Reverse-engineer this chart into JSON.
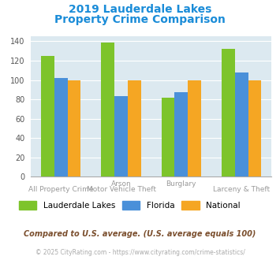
{
  "title_line1": "2019 Lauderdale Lakes",
  "title_line2": "Property Crime Comparison",
  "title_color": "#1a8cd8",
  "groups": [
    {
      "lauderdale": 125,
      "florida": 102,
      "national": 100
    },
    {
      "lauderdale": 139,
      "florida": 83,
      "national": 100
    },
    {
      "lauderdale": 82,
      "florida": 87,
      "national": 100
    },
    {
      "lauderdale": 132,
      "florida": 108,
      "national": 100
    }
  ],
  "bar_colors": {
    "lauderdale": "#7dc42b",
    "florida": "#4a90d9",
    "national": "#f5a623"
  },
  "ylim": [
    0,
    145
  ],
  "yticks": [
    0,
    20,
    40,
    60,
    80,
    100,
    120,
    140
  ],
  "plot_bg": "#dce9f0",
  "legend_labels": [
    "Lauderdale Lakes",
    "Florida",
    "National"
  ],
  "group_labels_top": [
    "",
    "Arson",
    "Burglary",
    ""
  ],
  "group_labels_bottom": [
    "All Property Crime",
    "Motor Vehicle Theft",
    "",
    "Larceny & Theft"
  ],
  "footnote1": "Compared to U.S. average. (U.S. average equals 100)",
  "footnote2": "© 2025 CityRating.com - https://www.cityrating.com/crime-statistics/",
  "footnote1_color": "#7b4f2e",
  "footnote2_color": "#aaaaaa"
}
